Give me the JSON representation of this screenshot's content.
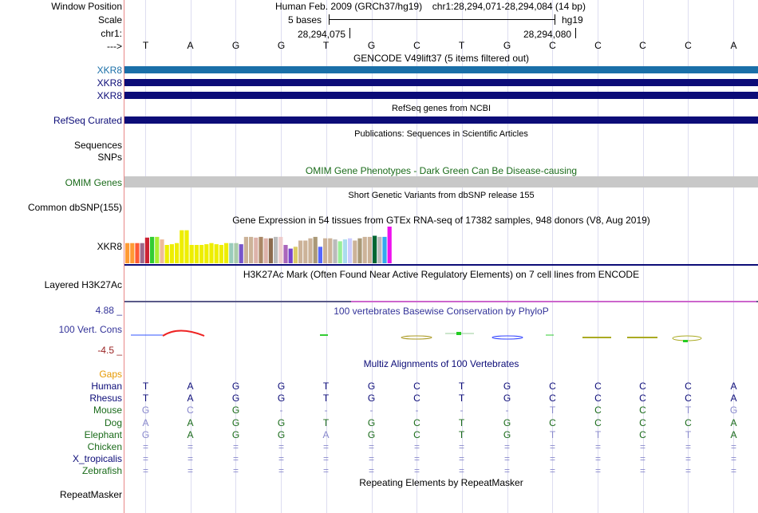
{
  "header": {
    "window_position_label": "Window Position",
    "scale_label": "Scale",
    "chr_label": "chr1:",
    "arrow_label": "--->",
    "assembly": "Human Feb. 2009 (GRCh37/hg19)",
    "position": "chr1:28,294,071-28,294,084 (14 bp)",
    "scale_text": "5 bases",
    "db_text": "hg19",
    "coord_left": "28,294,075",
    "coord_right": "28,294,080"
  },
  "sequence": [
    "T",
    "A",
    "G",
    "G",
    "T",
    "G",
    "C",
    "T",
    "G",
    "C",
    "C",
    "C",
    "C",
    "A"
  ],
  "gencode": {
    "title": "GENCODE V49lift37 (5 items filtered out)",
    "labels": [
      "XKR8",
      "XKR8",
      "XKR8"
    ],
    "colors": [
      "#1a6fa8",
      "#0c0c78",
      "#0c0c78"
    ]
  },
  "refseq": {
    "title": "RefSeq genes from NCBI",
    "label": "RefSeq Curated",
    "color": "#0c0c78"
  },
  "publications": {
    "title": "Publications: Sequences in Scientific Articles",
    "labels": [
      "Sequences",
      "SNPs"
    ]
  },
  "omim": {
    "title": "OMIM Gene Phenotypes - Dark Green Can Be Disease-causing",
    "label": "OMIM Genes",
    "color": "#1a6b1a",
    "bar_color": "#c8c8c8"
  },
  "dbsnp": {
    "title": "Short Genetic Variants from dbSNP release 155",
    "label": "Common dbSNP(155)"
  },
  "gtex": {
    "title": "Gene Expression in 54 tissues from GTEx RNA-seq of 17382 samples, 948 donors (V8, Aug 2019)",
    "label": "XKR8",
    "bars": [
      {
        "v": 0.55,
        "c": "#ff9a33"
      },
      {
        "v": 0.55,
        "c": "#ff9a33"
      },
      {
        "v": 0.55,
        "c": "#ff5a35"
      },
      {
        "v": 0.55,
        "c": "#9c6a8c"
      },
      {
        "v": 0.7,
        "c": "#cc2233"
      },
      {
        "v": 0.72,
        "c": "#33cc33"
      },
      {
        "v": 0.72,
        "c": "#aaee33"
      },
      {
        "v": 0.65,
        "c": "#eebb99"
      },
      {
        "v": 0.5,
        "c": "#eeee00"
      },
      {
        "v": 0.52,
        "c": "#eeee00"
      },
      {
        "v": 0.55,
        "c": "#eeee00"
      },
      {
        "v": 0.9,
        "c": "#eeee00"
      },
      {
        "v": 0.9,
        "c": "#eeee00"
      },
      {
        "v": 0.5,
        "c": "#eeee00"
      },
      {
        "v": 0.5,
        "c": "#eeee00"
      },
      {
        "v": 0.5,
        "c": "#eeee00"
      },
      {
        "v": 0.52,
        "c": "#eeee00"
      },
      {
        "v": 0.55,
        "c": "#eeee00"
      },
      {
        "v": 0.52,
        "c": "#eeee00"
      },
      {
        "v": 0.5,
        "c": "#eeee00"
      },
      {
        "v": 0.55,
        "c": "#eeee00"
      },
      {
        "v": 0.55,
        "c": "#99ccbb"
      },
      {
        "v": 0.55,
        "c": "#aaccaa"
      },
      {
        "v": 0.52,
        "c": "#7755cc"
      },
      {
        "v": 0.72,
        "c": "#ccb399"
      },
      {
        "v": 0.72,
        "c": "#ccb399"
      },
      {
        "v": 0.7,
        "c": "#ddb3aa"
      },
      {
        "v": 0.72,
        "c": "#aa8866"
      },
      {
        "v": 0.68,
        "c": "#ddb3aa"
      },
      {
        "v": 0.68,
        "c": "#8c6a4d"
      },
      {
        "v": 0.72,
        "c": "#bbbbbb"
      },
      {
        "v": 0.72,
        "c": "#eecccc"
      },
      {
        "v": 0.5,
        "c": "#aa66bb"
      },
      {
        "v": 0.4,
        "c": "#7744cc"
      },
      {
        "v": 0.45,
        "c": "#ddcc66"
      },
      {
        "v": 0.62,
        "c": "#ccb399"
      },
      {
        "v": 0.62,
        "c": "#ccb399"
      },
      {
        "v": 0.68,
        "c": "#ccb399"
      },
      {
        "v": 0.72,
        "c": "#aa9977"
      },
      {
        "v": 0.45,
        "c": "#5566ff"
      },
      {
        "v": 0.68,
        "c": "#ccb399"
      },
      {
        "v": 0.68,
        "c": "#ccb399"
      },
      {
        "v": 0.65,
        "c": "#bbbbbb"
      },
      {
        "v": 0.6,
        "c": "#99ee99"
      },
      {
        "v": 0.65,
        "c": "#aaddee"
      },
      {
        "v": 0.68,
        "c": "#ccccff"
      },
      {
        "v": 0.62,
        "c": "#ccb399"
      },
      {
        "v": 0.68,
        "c": "#aa9977"
      },
      {
        "v": 0.72,
        "c": "#ccb399"
      },
      {
        "v": 0.72,
        "c": "#ccb399"
      },
      {
        "v": 0.75,
        "c": "#006633"
      },
      {
        "v": 0.72,
        "c": "#bbbbbb"
      },
      {
        "v": 0.72,
        "c": "#33aaee"
      },
      {
        "v": 1.0,
        "c": "#ee11ee"
      }
    ]
  },
  "h3k27ac": {
    "title": "H3K27Ac Mark (Often Found Near Active Regulatory Elements) on 7 cell lines from ENCODE",
    "label": "Layered H3K27Ac"
  },
  "phylop": {
    "title": "100 vertebrates Basewise Conservation by PhyloP",
    "label": "100 Vert. Cons",
    "ymax": "4.88 _",
    "ymin": "-4.5 _",
    "label_color": "#333399",
    "ymin_color": "#992222"
  },
  "multiz": {
    "title": "Multiz Alignments of 100 Vertebrates",
    "gaps_label": "Gaps",
    "species": [
      {
        "name": "Human",
        "color": "#0c0c78",
        "bases": [
          "T",
          "A",
          "G",
          "G",
          "T",
          "G",
          "C",
          "T",
          "G",
          "C",
          "C",
          "C",
          "C",
          "A"
        ],
        "faint": []
      },
      {
        "name": "Rhesus",
        "color": "#0c0c78",
        "bases": [
          "T",
          "A",
          "G",
          "G",
          "T",
          "G",
          "C",
          "T",
          "G",
          "C",
          "C",
          "C",
          "C",
          "A"
        ],
        "faint": []
      },
      {
        "name": "Mouse",
        "color": "#1a6b1a",
        "bases": [
          "G",
          "C",
          "G",
          "-",
          "-",
          "-",
          "-",
          "-",
          "-",
          "T",
          "C",
          "C",
          "T",
          "G"
        ],
        "faint": [
          0,
          1,
          3,
          4,
          5,
          6,
          7,
          8,
          9,
          12,
          13
        ]
      },
      {
        "name": "Dog",
        "color": "#1a6b1a",
        "bases": [
          "A",
          "A",
          "G",
          "G",
          "T",
          "G",
          "C",
          "T",
          "G",
          "C",
          "C",
          "C",
          "C",
          "A"
        ],
        "faint": [
          0
        ]
      },
      {
        "name": "Elephant",
        "color": "#1a6b1a",
        "bases": [
          "G",
          "A",
          "G",
          "G",
          "A",
          "G",
          "C",
          "T",
          "G",
          "T",
          "T",
          "C",
          "T",
          "A"
        ],
        "faint": [
          0,
          4,
          9,
          10,
          12
        ]
      },
      {
        "name": "Chicken",
        "color": "#1a6b1a",
        "bases": [
          "=",
          "=",
          "=",
          "=",
          "=",
          "=",
          "=",
          "=",
          "=",
          "=",
          "=",
          "=",
          "=",
          "="
        ],
        "faint": [
          0,
          1,
          2,
          3,
          4,
          5,
          6,
          7,
          8,
          9,
          10,
          11,
          12,
          13
        ]
      },
      {
        "name": "X_tropicalis",
        "color": "#0c0c78",
        "bases": [
          "=",
          "=",
          "=",
          "=",
          "=",
          "=",
          "=",
          "=",
          "=",
          "=",
          "=",
          "=",
          "=",
          "="
        ],
        "faint": [
          0,
          1,
          2,
          3,
          4,
          5,
          6,
          7,
          8,
          9,
          10,
          11,
          12,
          13
        ]
      },
      {
        "name": "Zebrafish",
        "color": "#1a6b1a",
        "bases": [
          "=",
          "=",
          "=",
          "=",
          "=",
          "=",
          "=",
          "=",
          "=",
          "=",
          "=",
          "=",
          "=",
          "="
        ],
        "faint": [
          0,
          1,
          2,
          3,
          4,
          5,
          6,
          7,
          8,
          9,
          10,
          11,
          12,
          13
        ]
      }
    ],
    "faint_color": "#8888cc"
  },
  "repeatmasker": {
    "title": "Repeating Elements by RepeatMasker",
    "label": "RepeatMasker"
  },
  "colors": {
    "gaps": "#e69900",
    "gridline": "#ddddf0",
    "divider": "#e88888"
  }
}
